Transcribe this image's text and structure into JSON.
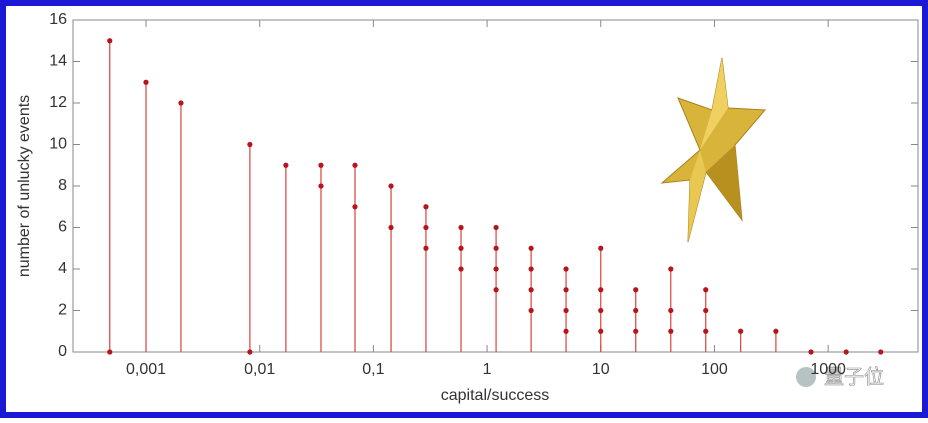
{
  "chart_data": {
    "type": "stem",
    "x_label": "capital/success",
    "y_label": "number of unlucky events",
    "watermark": "量子位",
    "log_x": true,
    "color": "#d9403f",
    "marker_color": "#b8141c",
    "xlim": [
      0.000228,
      6170
    ],
    "xticks": [
      {
        "value": 0.001,
        "label": "0,001"
      },
      {
        "value": 0.01,
        "label": "0,01"
      },
      {
        "value": 0.1,
        "label": "0,1"
      },
      1,
      10,
      100,
      1000
    ],
    "ylim": [
      0,
      16
    ],
    "yticks": [
      0,
      2,
      4,
      6,
      8,
      10,
      12,
      14,
      16
    ],
    "x": [
      0.00048,
      0.001,
      0.00203,
      0.0082,
      0.017,
      0.0346,
      0.0689,
      0.143,
      0.29,
      0.59,
      1.2,
      2.44,
      4.95,
      10,
      20.3,
      41.3,
      83.8,
      170,
      347,
      707,
      1440,
      2900
    ],
    "values": [
      15,
      13,
      12,
      10,
      9,
      9,
      9,
      8,
      7,
      6,
      6,
      5,
      4,
      5,
      3,
      4,
      3,
      1,
      1,
      0,
      0,
      0
    ],
    "markers": [
      [
        15,
        0
      ],
      [
        13
      ],
      [
        12
      ],
      [
        10,
        0
      ],
      [
        9
      ],
      [
        9,
        8
      ],
      [
        9,
        7
      ],
      [
        8,
        6
      ],
      [
        7,
        6,
        5
      ],
      [
        6,
        5,
        4
      ],
      [
        6,
        5,
        4,
        3
      ],
      [
        5,
        4,
        3,
        2
      ],
      [
        4,
        3,
        2,
        1
      ],
      [
        5,
        3,
        2,
        1
      ],
      [
        3,
        2,
        1
      ],
      [
        4,
        2,
        1
      ],
      [
        3,
        2,
        1
      ],
      [
        1
      ],
      [
        1
      ],
      [
        0
      ],
      [
        0
      ],
      [
        0
      ]
    ]
  }
}
